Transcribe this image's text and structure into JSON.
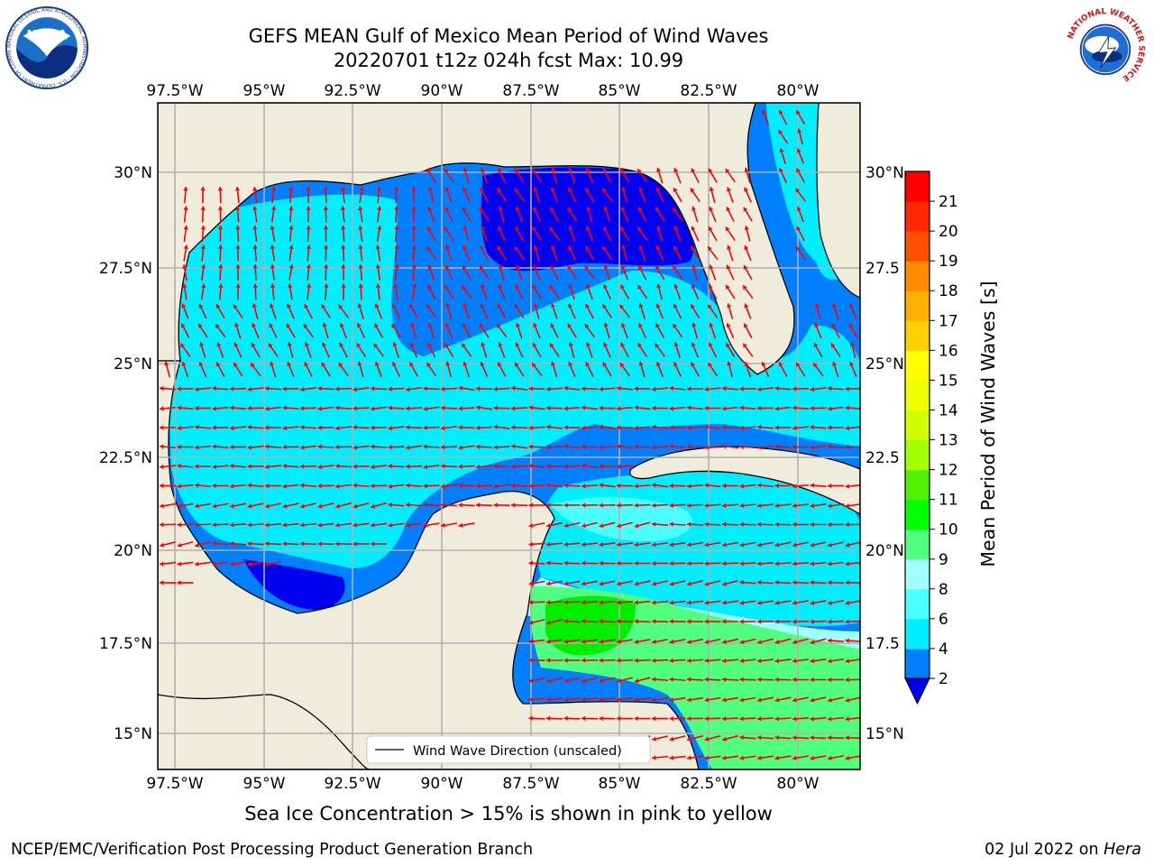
{
  "header": {
    "title_line1": "GEFS MEAN Gulf of Mexico Mean Period of Wind Waves",
    "title_line2": "20220701 t12z 024h fcst   Max: 10.99"
  },
  "logos": {
    "noaa_text": "NOAA",
    "noaa_ring": "NATIONAL OCEANIC AND ATMOSPHERIC ADMINISTRATION · U.S. DEPARTMENT OF COMMERCE",
    "nws_ring": "NATIONAL WEATHER SERVICE"
  },
  "map": {
    "lon_labels": [
      "97.5°W",
      "95°W",
      "92.5°W",
      "90°W",
      "87.5°W",
      "85°W",
      "82.5°W",
      "80°W"
    ],
    "lat_labels_left": [
      "30°N",
      "27.5°N",
      "25°N",
      "22.5°N",
      "20°N",
      "17.5°N",
      "15°N"
    ],
    "lat_labels_right": [
      "30°N",
      "27.5",
      "25°N",
      "22.5",
      "20°N",
      "17.5",
      "15°N"
    ],
    "legend_label": "Wind Wave Direction (unscaled)",
    "colors": {
      "land": "#efecdc",
      "ocean_white": "#ffffff",
      "arrow": "#ff0000",
      "grid": "#b0b0b0",
      "coast": "#000000"
    }
  },
  "colorbar": {
    "title": "Mean Period of Wind Waves [s]",
    "ticks": [
      "2",
      "4",
      "6",
      "8",
      "9",
      "10",
      "11",
      "12",
      "13",
      "14",
      "15",
      "16",
      "17",
      "18",
      "19",
      "20",
      "21"
    ],
    "under_color": "#0000ee",
    "band_colors": [
      "#0080ff",
      "#00eeff",
      "#4cffff",
      "#a0ffff",
      "#50ff80",
      "#00ff00",
      "#50f000",
      "#a0ff00",
      "#d0ff00",
      "#f0ff00",
      "#ffff00",
      "#ffd000",
      "#ffb000",
      "#ff8c00",
      "#ff5000",
      "#ff2800",
      "#ff0000"
    ]
  },
  "footer": {
    "note": "Sea Ice Concentration > 15% is shown in pink to yellow",
    "credit": "NCEP/EMC/Verification Post Processing Product Generation Branch",
    "date": "02 Jul 2022 on",
    "host": "Hera"
  }
}
